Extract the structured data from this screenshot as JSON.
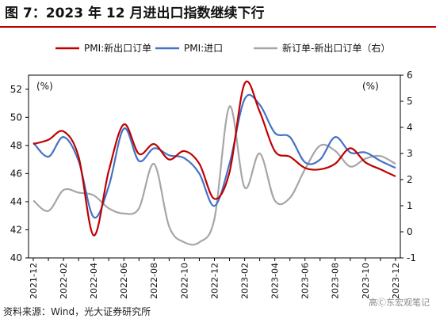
{
  "title": "图 7：2023 年 12 月进出口指数继续下行",
  "footer": "资料来源：Wind，光大证券研究所",
  "watermark": "高Ⓒ东宏观笔记",
  "chart_data": {
    "type": "line",
    "left_unit": "(%)",
    "right_unit": "(%)",
    "ylim_left": [
      40,
      53
    ],
    "ylim_right": [
      -1,
      6
    ],
    "yticks_left": [
      40,
      42,
      44,
      46,
      48,
      50,
      52
    ],
    "yticks_right": [
      -1,
      0,
      1,
      2,
      3,
      4,
      5,
      6
    ],
    "x": [
      "2021-12",
      "2022-01",
      "2022-02",
      "2022-03",
      "2022-04",
      "2022-05",
      "2022-06",
      "2022-07",
      "2022-08",
      "2022-09",
      "2022-10",
      "2022-11",
      "2022-12",
      "2023-01",
      "2023-02",
      "2023-03",
      "2023-04",
      "2023-05",
      "2023-06",
      "2023-07",
      "2023-08",
      "2023-09",
      "2023-10",
      "2023-11",
      "2023-12"
    ],
    "xticks": [
      "2021-12",
      "2022-02",
      "2022-04",
      "2022-06",
      "2022-08",
      "2022-10",
      "2022-12",
      "2023-02",
      "2023-04",
      "2023-06",
      "2023-08",
      "2023-10",
      "2023-12"
    ],
    "series": [
      {
        "name": "PMI:新出口订单",
        "axis": "left",
        "color": "#c00000",
        "values": [
          48.1,
          48.4,
          49.0,
          47.2,
          41.6,
          46.2,
          49.5,
          47.4,
          48.1,
          47.0,
          47.6,
          46.7,
          44.2,
          46.1,
          52.4,
          50.4,
          47.6,
          47.2,
          46.4,
          46.3,
          46.7,
          47.8,
          46.8,
          46.3,
          45.8
        ]
      },
      {
        "name": "PMI:进口",
        "axis": "left",
        "color": "#4472c4",
        "values": [
          48.2,
          47.2,
          48.6,
          46.9,
          42.9,
          45.1,
          49.2,
          46.9,
          47.8,
          47.3,
          47.1,
          46.0,
          43.7,
          46.7,
          51.3,
          50.9,
          48.9,
          48.6,
          46.8,
          47.0,
          48.6,
          47.5,
          47.5,
          46.9,
          46.4
        ]
      },
      {
        "name": "新订单-新出口订单（右）",
        "axis": "right",
        "color": "#a6a6a6",
        "values": [
          1.2,
          0.8,
          1.6,
          1.5,
          1.4,
          0.9,
          0.7,
          0.9,
          2.6,
          0.2,
          -0.4,
          -0.4,
          0.5,
          4.8,
          1.7,
          3.0,
          1.2,
          1.3,
          2.4,
          3.3,
          3.1,
          2.5,
          2.8,
          2.9,
          2.6
        ]
      }
    ]
  }
}
